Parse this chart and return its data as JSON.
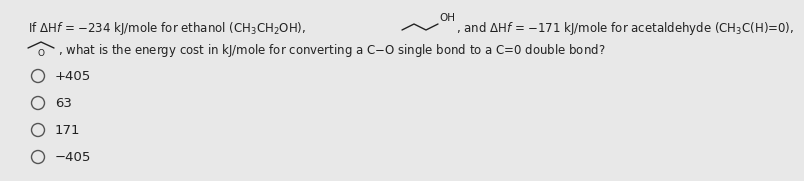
{
  "background_color": "#e8e8e8",
  "text_color": "#222222",
  "line1_part1": "If ΔHƒ = −234 kJ/mole for ethanol (CH₃CH₂OH),",
  "oh_label": "OH",
  "line1_part2": ", and ΔHƒ = −171 kJ/mole for acetaldehyde (CH₃C(H)=0),",
  "line2_text": ", what is the energy cost in kJ/mole for converting a C—O single bond to a C=0 double bond?",
  "options": [
    "+405",
    "63",
    "171",
    "−405"
  ],
  "font_size_q": 8.5,
  "font_size_opt": 9.5,
  "zigzag_color": "#222222",
  "circle_edge_color": "#555555"
}
